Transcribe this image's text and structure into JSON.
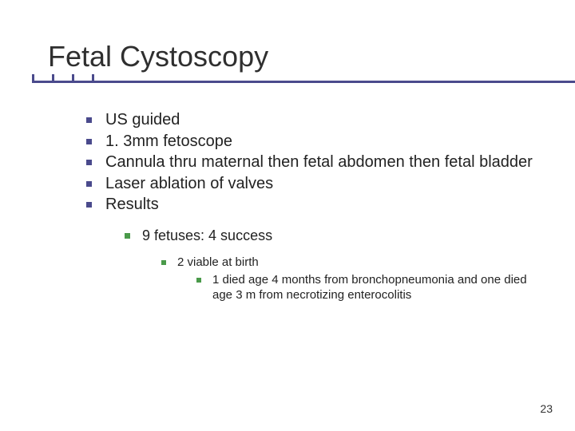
{
  "title": "Fetal Cystoscopy",
  "bullets": {
    "b1": "US guided",
    "b2": "1. 3mm fetoscope",
    "b3": "Cannula thru maternal then fetal abdomen then fetal bladder",
    "b4": "Laser ablation of valves",
    "b5": "Results",
    "b5_1": "9 fetuses: 4 success",
    "b5_1_1": "2 viable at birth",
    "b5_1_1_1": "1 died age 4 months from bronchopneumonia and one died age 3 m from necrotizing enterocolitis"
  },
  "page_number": "23",
  "colors": {
    "bullet_primary": "#4a4a8c",
    "bullet_secondary": "#4a9a4a",
    "text": "#222222",
    "title": "#2f2f2f",
    "background": "#ffffff"
  },
  "fonts": {
    "title_size_pt": 36,
    "level1_size_pt": 20,
    "level2_size_pt": 18,
    "level3_size_pt": 15,
    "level4_size_pt": 15,
    "pagenum_size_pt": 14,
    "family": "Verdana"
  }
}
